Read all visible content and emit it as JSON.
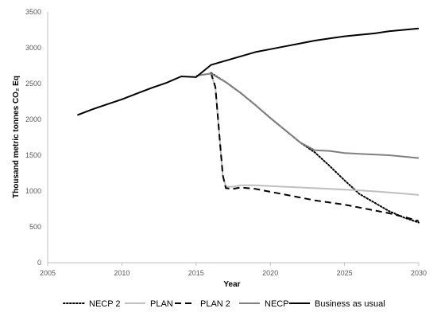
{
  "chart_data": {
    "type": "line",
    "xlabel": "Year",
    "ylabel": "Thousand metric tonnes CO₂ Eq",
    "xlim": [
      2005,
      2030
    ],
    "ylim": [
      0,
      3500
    ],
    "x_ticks": [
      "2005",
      "2010",
      "2015",
      "2020",
      "2025",
      "2030"
    ],
    "y_ticks": [
      "0",
      "500",
      "1000",
      "1500",
      "2000",
      "2500",
      "3000",
      "3500"
    ],
    "grid": false,
    "legend_position": "bottom",
    "series": [
      {
        "name": "NECP 2",
        "color": "#000000",
        "style": "dotted",
        "points": [
          [
            2016,
            2650
          ],
          [
            2017,
            2520
          ],
          [
            2018,
            2370
          ],
          [
            2019,
            2200
          ],
          [
            2020,
            2020
          ],
          [
            2021,
            1850
          ],
          [
            2022,
            1680
          ],
          [
            2023,
            1540
          ],
          [
            2024,
            1350
          ],
          [
            2025,
            1150
          ],
          [
            2026,
            960
          ],
          [
            2027,
            840
          ],
          [
            2028,
            720
          ],
          [
            2029,
            630
          ],
          [
            2030,
            560
          ]
        ]
      },
      {
        "name": "PLAN",
        "color": "#bfbfbf",
        "style": "solid",
        "points": [
          [
            2016,
            2640
          ],
          [
            2016.3,
            2450
          ],
          [
            2016.6,
            1700
          ],
          [
            2016.8,
            1220
          ],
          [
            2017,
            1060
          ],
          [
            2017.5,
            1060
          ],
          [
            2018,
            1080
          ],
          [
            2019,
            1080
          ],
          [
            2020,
            1070
          ],
          [
            2021,
            1060
          ],
          [
            2022,
            1050
          ],
          [
            2023,
            1040
          ],
          [
            2024,
            1030
          ],
          [
            2025,
            1020
          ],
          [
            2026,
            1010
          ],
          [
            2027,
            995
          ],
          [
            2028,
            980
          ],
          [
            2029,
            965
          ],
          [
            2030,
            945
          ]
        ]
      },
      {
        "name": "PLAN 2",
        "color": "#000000",
        "style": "dashed",
        "points": [
          [
            2016,
            2650
          ],
          [
            2016.3,
            2450
          ],
          [
            2016.6,
            1700
          ],
          [
            2016.8,
            1220
          ],
          [
            2017,
            1040
          ],
          [
            2017.5,
            1030
          ],
          [
            2018,
            1050
          ],
          [
            2019,
            1030
          ],
          [
            2020,
            990
          ],
          [
            2021,
            950
          ],
          [
            2022,
            910
          ],
          [
            2023,
            870
          ],
          [
            2024,
            840
          ],
          [
            2025,
            810
          ],
          [
            2026,
            770
          ],
          [
            2027,
            730
          ],
          [
            2028,
            690
          ],
          [
            2029,
            640
          ],
          [
            2030,
            580
          ]
        ]
      },
      {
        "name": "NECP",
        "color": "#808080",
        "style": "solid",
        "points": [
          [
            2015,
            2610
          ],
          [
            2016,
            2640
          ],
          [
            2017,
            2520
          ],
          [
            2018,
            2370
          ],
          [
            2019,
            2200
          ],
          [
            2020,
            2020
          ],
          [
            2021,
            1850
          ],
          [
            2022,
            1680
          ],
          [
            2023,
            1570
          ],
          [
            2024,
            1560
          ],
          [
            2025,
            1530
          ],
          [
            2026,
            1520
          ],
          [
            2027,
            1510
          ],
          [
            2028,
            1500
          ],
          [
            2029,
            1480
          ],
          [
            2030,
            1460
          ]
        ]
      },
      {
        "name": "Business as usual",
        "color": "#000000",
        "style": "solid",
        "points": [
          [
            2007,
            2060
          ],
          [
            2008,
            2140
          ],
          [
            2009,
            2210
          ],
          [
            2010,
            2280
          ],
          [
            2011,
            2360
          ],
          [
            2012,
            2440
          ],
          [
            2013,
            2510
          ],
          [
            2014,
            2600
          ],
          [
            2015,
            2590
          ],
          [
            2016,
            2760
          ],
          [
            2017,
            2820
          ],
          [
            2018,
            2880
          ],
          [
            2019,
            2940
          ],
          [
            2020,
            2980
          ],
          [
            2021,
            3020
          ],
          [
            2022,
            3060
          ],
          [
            2023,
            3100
          ],
          [
            2024,
            3130
          ],
          [
            2025,
            3160
          ],
          [
            2026,
            3180
          ],
          [
            2027,
            3200
          ],
          [
            2028,
            3230
          ],
          [
            2029,
            3250
          ],
          [
            2030,
            3270
          ]
        ]
      }
    ]
  }
}
